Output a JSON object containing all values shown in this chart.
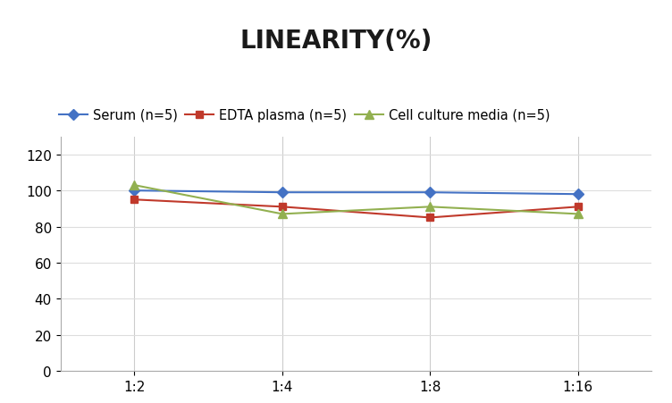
{
  "title": "LINEARITY(%)",
  "x_labels": [
    "1:2",
    "1:4",
    "1:8",
    "1:16"
  ],
  "x_positions": [
    0,
    1,
    2,
    3
  ],
  "series": [
    {
      "name": "Serum (n=5)",
      "values": [
        100,
        99,
        99,
        98
      ],
      "color": "#4472C4",
      "marker": "D",
      "linewidth": 1.5,
      "markersize": 6
    },
    {
      "name": "EDTA plasma (n=5)",
      "values": [
        95,
        91,
        85,
        91
      ],
      "color": "#C0392B",
      "marker": "s",
      "linewidth": 1.5,
      "markersize": 6
    },
    {
      "name": "Cell culture media (n=5)",
      "values": [
        103,
        87,
        91,
        87
      ],
      "color": "#92B050",
      "marker": "^",
      "linewidth": 1.5,
      "markersize": 7
    }
  ],
  "ylim": [
    0,
    130
  ],
  "yticks": [
    0,
    20,
    40,
    60,
    80,
    100,
    120
  ],
  "background_color": "#ffffff",
  "title_fontsize": 20,
  "title_fontweight": "bold",
  "legend_fontsize": 10.5,
  "tick_fontsize": 11
}
